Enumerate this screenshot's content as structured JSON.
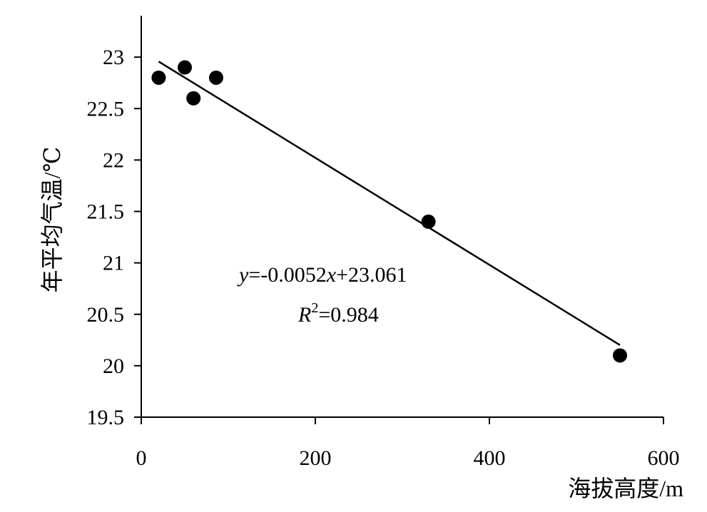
{
  "chart_data": {
    "type": "scatter",
    "xlabel": "海拔高度/m",
    "ylabel": "年平均气温/℃",
    "xlim": [
      0,
      600
    ],
    "ylim": [
      19.5,
      23.5
    ],
    "x_ticks": [
      "0",
      "200",
      "400",
      "600"
    ],
    "y_ticks": [
      "19.5",
      "20",
      "20.5",
      "21",
      "21.5",
      "22",
      "22.5",
      "23"
    ],
    "points": [
      {
        "x": 20,
        "y": 22.8
      },
      {
        "x": 50,
        "y": 22.9
      },
      {
        "x": 60,
        "y": 22.6
      },
      {
        "x": 86,
        "y": 22.8
      },
      {
        "x": 330,
        "y": 21.4
      },
      {
        "x": 550,
        "y": 20.1
      }
    ],
    "trendline": {
      "type": "linear",
      "slope": -0.0052,
      "intercept": 23.061,
      "x_range": [
        20,
        550
      ],
      "equation_y": "y",
      "equation_rhs_a": "=-0.0052",
      "equation_x": "x",
      "equation_rhs_b": "+23.061",
      "r2_symbol": "R",
      "r2_exp": "2",
      "r2_value": "=0.984"
    },
    "grid": false,
    "legend": "none"
  }
}
